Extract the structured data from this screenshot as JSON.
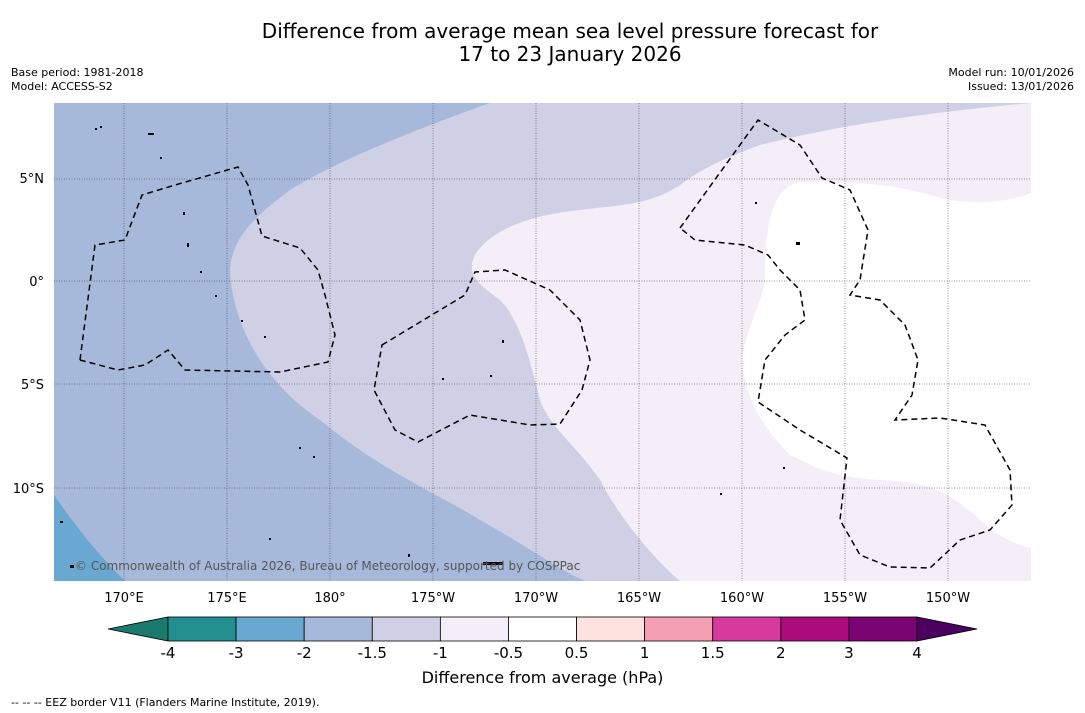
{
  "title_line1": "Difference from average mean sea level pressure forecast for",
  "title_line2": "17 to 23 January 2026",
  "base_period": "Base period: 1981-2018",
  "model": "Model: ACCESS-S2",
  "model_run": "Model run: 10/01/2026",
  "issued": "Issued: 13/01/2026",
  "copyright": "© Commonwealth of Australia 2026, Bureau of Meteorology, supported by COSPPac",
  "colorbar_title": "Difference from average (hPa)",
  "footnote": "--  --  -- EEZ border V11 (Flanders Marine Institute, 2019).",
  "lat_labels": [
    "5°N",
    "0°",
    "5°S",
    "10°S"
  ],
  "lon_labels": [
    "170°E",
    "175°E",
    "180°",
    "175°W",
    "170°W",
    "165°W",
    "160°W",
    "155°W",
    "150°W"
  ],
  "colorbar": {
    "ticks": [
      "-4",
      "-3",
      "-2",
      "-1.5",
      "-1",
      "-0.5",
      "0.5",
      "1",
      "1.5",
      "2",
      "3",
      "4"
    ],
    "colors": [
      "#1a7a6e",
      "#23908f",
      "#69a8d0",
      "#a7b9db",
      "#cfd0e5",
      "#f3eef7",
      "#ffffff",
      "#fde2e0",
      "#f59fb2",
      "#d7399d",
      "#ac0b7d",
      "#7a0373",
      "#4b005f"
    ]
  }
}
